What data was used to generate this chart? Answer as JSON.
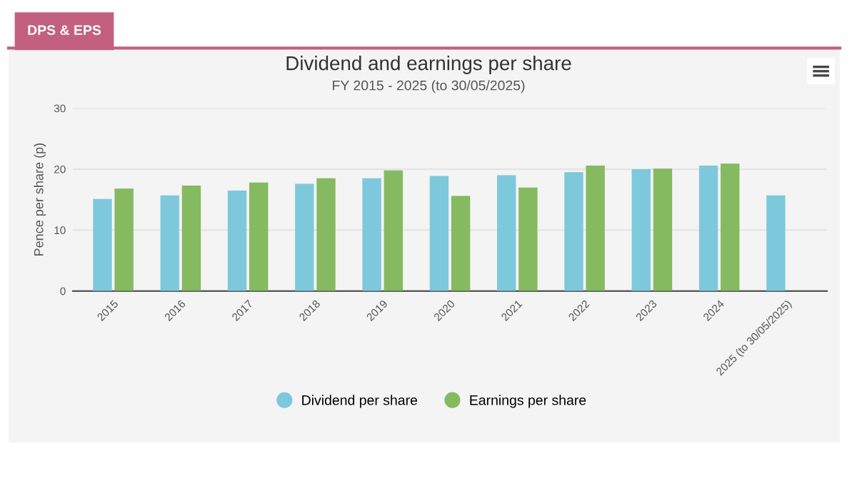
{
  "chart_data": {
    "type": "bar",
    "title": "Dividend and earnings per share",
    "subtitle": "FY 2015 - 2025 (to 30/05/2025)",
    "ylabel": "Pence per share (p)",
    "annotations": [
      "DPS & EPS"
    ],
    "categories": [
      "2015",
      "2016",
      "2017",
      "2018",
      "2019",
      "2020",
      "2021",
      "2022",
      "2023",
      "2024",
      "2025 (to 30/05/2025)"
    ],
    "series": [
      {
        "name": "Dividend per share",
        "color": "#7ec8dc",
        "values": [
          15.1,
          15.7,
          16.5,
          17.6,
          18.5,
          18.9,
          19.0,
          19.5,
          20.0,
          20.6,
          15.7
        ]
      },
      {
        "name": "Earnings per share",
        "color": "#85ba60",
        "values": [
          16.8,
          17.3,
          17.8,
          18.5,
          19.8,
          15.6,
          17.0,
          20.6,
          20.1,
          20.9,
          null
        ]
      }
    ],
    "ylim": [
      0,
      30
    ],
    "yticks": [
      0,
      10,
      20,
      30
    ],
    "grid": "y",
    "legend": "bottom"
  }
}
